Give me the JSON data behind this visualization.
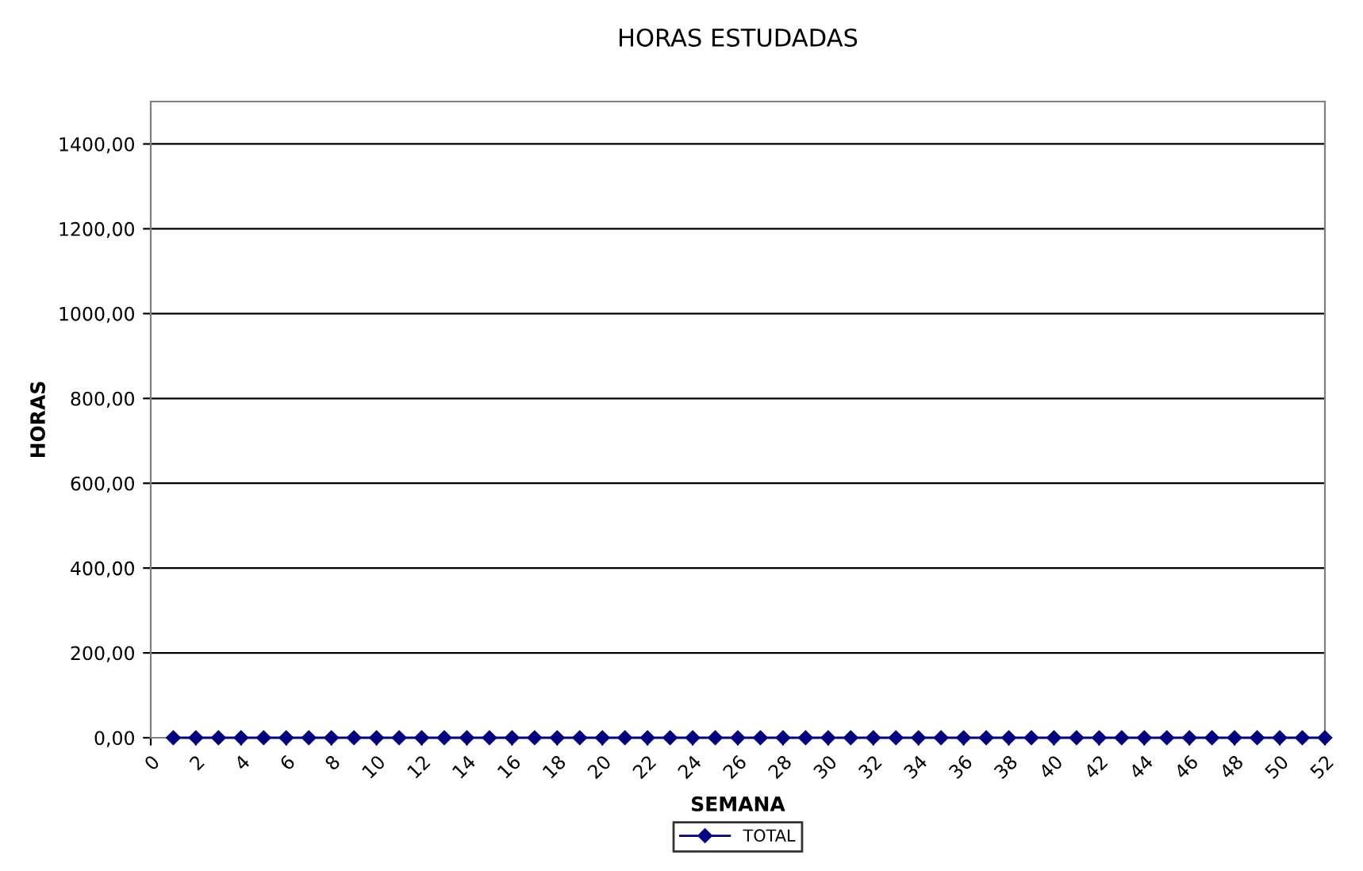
{
  "chart_data": {
    "type": "line",
    "title": "HORAS ESTUDADAS",
    "xlabel": "SEMANA",
    "ylabel": "HORAS",
    "x": [
      1,
      2,
      3,
      4,
      5,
      6,
      7,
      8,
      9,
      10,
      11,
      12,
      13,
      14,
      15,
      16,
      17,
      18,
      19,
      20,
      21,
      22,
      23,
      24,
      25,
      26,
      27,
      28,
      29,
      30,
      31,
      32,
      33,
      34,
      35,
      36,
      37,
      38,
      39,
      40,
      41,
      42,
      43,
      44,
      45,
      46,
      47,
      48,
      49,
      50,
      51,
      52
    ],
    "series": [
      {
        "name": "TOTAL",
        "color": "#000080",
        "values": [
          0,
          0,
          0,
          0,
          0,
          0,
          0,
          0,
          0,
          0,
          0,
          0,
          0,
          0,
          0,
          0,
          0,
          0,
          0,
          0,
          0,
          0,
          0,
          0,
          0,
          0,
          0,
          0,
          0,
          0,
          0,
          0,
          0,
          0,
          0,
          0,
          0,
          0,
          0,
          0,
          0,
          0,
          0,
          0,
          0,
          0,
          0,
          0,
          0,
          0,
          0,
          0
        ]
      }
    ],
    "xlim": [
      0,
      52
    ],
    "xticks": [
      0,
      2,
      4,
      6,
      8,
      10,
      12,
      14,
      16,
      18,
      20,
      22,
      24,
      26,
      28,
      30,
      32,
      34,
      36,
      38,
      40,
      42,
      44,
      46,
      48,
      50,
      52
    ],
    "ylim": [
      0,
      1500
    ],
    "yticks": [
      {
        "value": 0,
        "label": "0,00"
      },
      {
        "value": 200,
        "label": "200,00"
      },
      {
        "value": 400,
        "label": "400,00"
      },
      {
        "value": 600,
        "label": "600,00"
      },
      {
        "value": 800,
        "label": "800,00"
      },
      {
        "value": 1000,
        "label": "1000,00"
      },
      {
        "value": 1200,
        "label": "1200,00"
      },
      {
        "value": 1400,
        "label": "1400,00"
      }
    ],
    "grid": "y",
    "legend": "bottom",
    "marker": "diamond",
    "line_style": "solid"
  }
}
